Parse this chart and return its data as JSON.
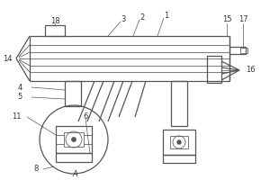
{
  "bg_color": "#ffffff",
  "lc": "#555555",
  "lw": 0.9,
  "lw_t": 0.55,
  "fs": 6.0
}
